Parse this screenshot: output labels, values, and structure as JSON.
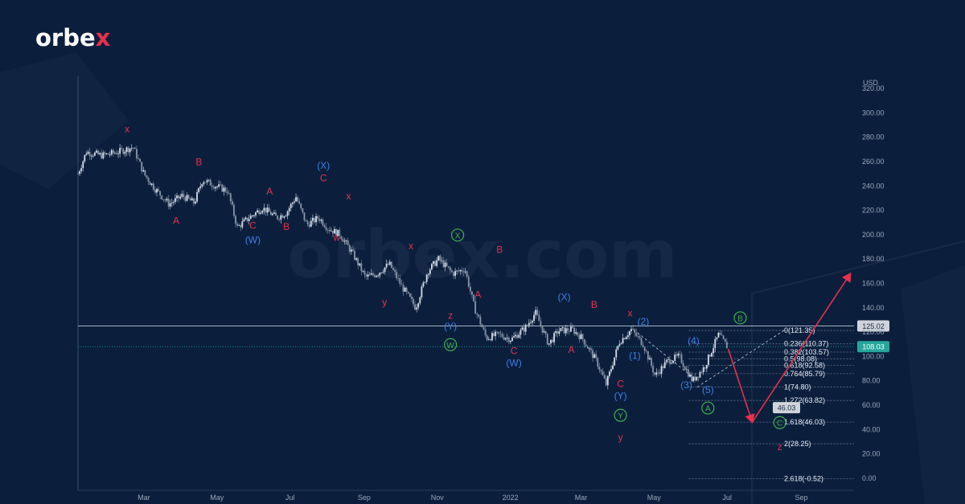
{
  "brand": {
    "name_start": "orbe",
    "name_x": "x",
    "watermark": "orbex.com"
  },
  "colors": {
    "background": "#0b1f3d",
    "wave_red": "#e8304a",
    "wave_blue": "#3f7ee8",
    "wave_green": "#3fb24e",
    "candle_up": "#d6dde8",
    "candle_down": "#8a96a8",
    "fib_line": "#8a96a8",
    "price_badge": "#26a69a",
    "level_badge": "#d0d4da"
  },
  "chart_data": {
    "type": "candlestick",
    "axis": {
      "y_unit": "USD",
      "y_ticks": [
        "320.00",
        "300.00",
        "280.00",
        "260.00",
        "240.00",
        "220.00",
        "200.00",
        "180.00",
        "160.00",
        "140.00",
        "120.00",
        "100.00",
        "80.00",
        "60.00",
        "40.00",
        "20.00",
        "0.00"
      ],
      "y_range": [
        -10,
        330
      ],
      "x_ticks": [
        "Mar",
        "May",
        "Jul",
        "Sep",
        "Nov",
        "2022",
        "Mar",
        "May",
        "Jul",
        "Sep"
      ],
      "x_range": [
        "2021-01-05",
        "2022-10-15"
      ]
    },
    "current_price": {
      "label": "108.03",
      "value": 108.03
    },
    "horizontal_level": {
      "label": "125.02",
      "value": 125.02
    },
    "fib_levels": [
      {
        "label": "0(121.35)",
        "value": 121.35
      },
      {
        "label": "0.236(110.37)",
        "value": 110.37
      },
      {
        "label": "0.382(103.57)",
        "value": 103.57
      },
      {
        "label": "0.5(98.08)",
        "value": 98.08
      },
      {
        "label": "0.618(92.58)",
        "value": 92.58
      },
      {
        "label": "0.764(85.79)",
        "value": 85.79
      },
      {
        "label": "1(74.80)",
        "value": 74.8
      },
      {
        "label": "1.272(63.82)",
        "value": 63.82
      },
      {
        "label": "1.618(46.03)",
        "value": 46.03
      },
      {
        "label": "2(28.25)",
        "value": 28.25
      },
      {
        "label": "2.618(-0.52)",
        "value": -0.52
      }
    ],
    "target_badge": {
      "label": "46.03",
      "value": 46.03
    },
    "price_path": [
      [
        "2021-01-05",
        250
      ],
      [
        "2021-01-12",
        268
      ],
      [
        "2021-01-25",
        265
      ],
      [
        "2021-02-08",
        268
      ],
      [
        "2021-02-20",
        272
      ],
      [
        "2021-03-01",
        250
      ],
      [
        "2021-03-10",
        238
      ],
      [
        "2021-03-22",
        225
      ],
      [
        "2021-04-02",
        232
      ],
      [
        "2021-04-12",
        226
      ],
      [
        "2021-04-19",
        245
      ],
      [
        "2021-04-30",
        240
      ],
      [
        "2021-05-10",
        236
      ],
      [
        "2021-05-18",
        206
      ],
      [
        "2021-05-28",
        214
      ],
      [
        "2021-06-08",
        222
      ],
      [
        "2021-06-20",
        214
      ],
      [
        "2021-06-28",
        218
      ],
      [
        "2021-07-06",
        231
      ],
      [
        "2021-07-15",
        208
      ],
      [
        "2021-07-25",
        214
      ],
      [
        "2021-08-02",
        205
      ],
      [
        "2021-08-12",
        200
      ],
      [
        "2021-08-22",
        185
      ],
      [
        "2021-09-02",
        165
      ],
      [
        "2021-09-12",
        168
      ],
      [
        "2021-09-22",
        176
      ],
      [
        "2021-10-02",
        158
      ],
      [
        "2021-10-14",
        140
      ],
      [
        "2021-10-24",
        170
      ],
      [
        "2021-11-02",
        180
      ],
      [
        "2021-11-14",
        168
      ],
      [
        "2021-11-24",
        172
      ],
      [
        "2021-12-02",
        140
      ],
      [
        "2021-12-12",
        115
      ],
      [
        "2021-12-22",
        118
      ],
      [
        "2022-01-02",
        114
      ],
      [
        "2022-01-14",
        124
      ],
      [
        "2022-01-22",
        136
      ],
      [
        "2022-02-02",
        110
      ],
      [
        "2022-02-10",
        121
      ],
      [
        "2022-02-22",
        122
      ],
      [
        "2022-03-02",
        115
      ],
      [
        "2022-03-14",
        96
      ],
      [
        "2022-03-22",
        77
      ],
      [
        "2022-04-02",
        112
      ],
      [
        "2022-04-12",
        122
      ],
      [
        "2022-04-22",
        110
      ],
      [
        "2022-05-02",
        84
      ],
      [
        "2022-05-12",
        96
      ],
      [
        "2022-05-22",
        100
      ],
      [
        "2022-06-02",
        80
      ],
      [
        "2022-06-12",
        91
      ],
      [
        "2022-06-24",
        118
      ],
      [
        "2022-07-01",
        108
      ]
    ],
    "projection": [
      [
        "2022-07-02",
        106
      ],
      [
        "2022-07-22",
        46
      ],
      [
        "2022-10-12",
        168
      ]
    ],
    "annotations": [
      {
        "text": "x",
        "color": "red",
        "date": "2021-02-15",
        "price": 284
      },
      {
        "text": "B",
        "color": "red",
        "date": "2021-04-16",
        "price": 257
      },
      {
        "text": "A",
        "color": "red",
        "date": "2021-03-28",
        "price": 209
      },
      {
        "text": "A",
        "color": "red",
        "date": "2021-06-14",
        "price": 233
      },
      {
        "text": "C",
        "color": "red",
        "date": "2021-05-31",
        "price": 205
      },
      {
        "text": "(W)",
        "color": "blue",
        "date": "2021-05-31",
        "price": 193
      },
      {
        "text": "B",
        "color": "red",
        "date": "2021-06-28",
        "price": 204
      },
      {
        "text": "(X)",
        "color": "blue",
        "date": "2021-07-29",
        "price": 254
      },
      {
        "text": "C",
        "color": "red",
        "date": "2021-07-29",
        "price": 244
      },
      {
        "text": "x",
        "color": "red",
        "date": "2021-08-19",
        "price": 229
      },
      {
        "text": "w",
        "color": "red",
        "date": "2021-08-09",
        "price": 195
      },
      {
        "text": "x",
        "color": "red",
        "date": "2021-10-10",
        "price": 188
      },
      {
        "text": "y",
        "color": "red",
        "date": "2021-09-18",
        "price": 142
      },
      {
        "text": "z",
        "color": "red",
        "date": "2021-11-12",
        "price": 131
      },
      {
        "text": "(Y)",
        "color": "blue",
        "date": "2021-11-12",
        "price": 122
      },
      {
        "text": "W",
        "color": "green",
        "date": "2021-11-12",
        "price": 107,
        "circled": true
      },
      {
        "text": "X",
        "color": "green",
        "date": "2021-11-18",
        "price": 197,
        "circled": true
      },
      {
        "text": "B",
        "color": "red",
        "date": "2021-12-23",
        "price": 185
      },
      {
        "text": "A",
        "color": "red",
        "date": "2021-12-05",
        "price": 148
      },
      {
        "text": "C",
        "color": "red",
        "date": "2022-01-04",
        "price": 102
      },
      {
        "text": "(W)",
        "color": "blue",
        "date": "2022-01-04",
        "price": 92
      },
      {
        "text": "(X)",
        "color": "blue",
        "date": "2022-02-15",
        "price": 146
      },
      {
        "text": "B",
        "color": "red",
        "date": "2022-03-12",
        "price": 140
      },
      {
        "text": "A",
        "color": "red",
        "date": "2022-02-21",
        "price": 103
      },
      {
        "text": "x",
        "color": "red",
        "date": "2022-04-11",
        "price": 133
      },
      {
        "text": "(2)",
        "color": "blue",
        "date": "2022-04-22",
        "price": 126
      },
      {
        "text": "(1)",
        "color": "blue",
        "date": "2022-04-15",
        "price": 98
      },
      {
        "text": "C",
        "color": "red",
        "date": "2022-04-03",
        "price": 75
      },
      {
        "text": "(Y)",
        "color": "blue",
        "date": "2022-04-03",
        "price": 65
      },
      {
        "text": "Y",
        "color": "green",
        "date": "2022-04-03",
        "price": 49,
        "circled": true
      },
      {
        "text": "y",
        "color": "red",
        "date": "2022-04-03",
        "price": 31
      },
      {
        "text": "(4)",
        "color": "blue",
        "date": "2022-06-03",
        "price": 110
      },
      {
        "text": "(3)",
        "color": "blue",
        "date": "2022-05-28",
        "price": 74
      },
      {
        "text": "(5)",
        "color": "blue",
        "date": "2022-06-15",
        "price": 70
      },
      {
        "text": "A",
        "color": "green",
        "date": "2022-06-15",
        "price": 55,
        "circled": true
      },
      {
        "text": "B",
        "color": "green",
        "date": "2022-07-12",
        "price": 129,
        "circled": true
      },
      {
        "text": "C",
        "color": "green",
        "date": "2022-08-14",
        "price": 43,
        "circled": true
      },
      {
        "text": "z",
        "color": "red",
        "date": "2022-08-14",
        "price": 23
      }
    ]
  }
}
